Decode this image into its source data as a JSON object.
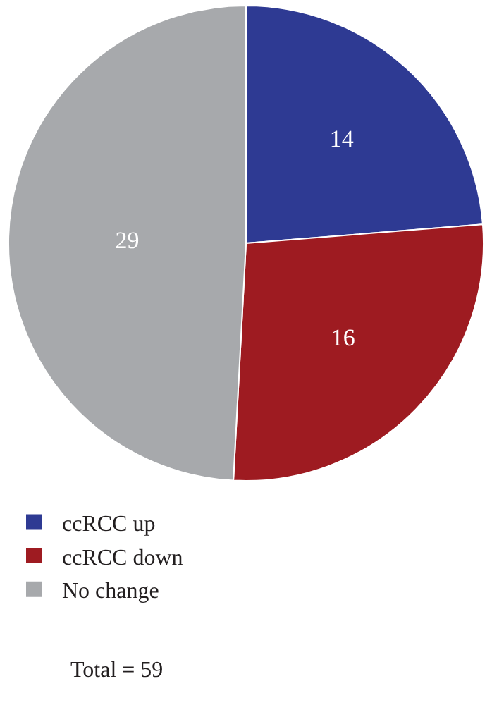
{
  "chart_data": {
    "type": "pie",
    "categories": [
      "ccRCC up",
      "ccRCC down",
      "No change"
    ],
    "values": [
      14,
      16,
      29
    ],
    "colors": [
      "#2e3a93",
      "#9e1b21",
      "#a7a9ac"
    ],
    "data_labels": true,
    "legend": "bottom left",
    "annotations": [
      "Total = 59"
    ]
  }
}
